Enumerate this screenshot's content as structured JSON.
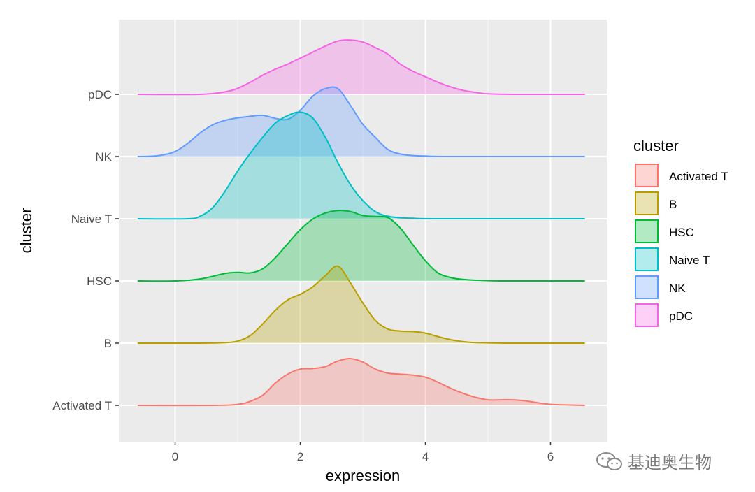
{
  "chart_data": {
    "type": "ridgeline",
    "xlabel": "expression",
    "ylabel": "cluster",
    "xlim": [
      -0.9,
      6.9
    ],
    "x_ticks": [
      0,
      2,
      4,
      6
    ],
    "x_minor_ticks": [
      1,
      3,
      5
    ],
    "grid": true,
    "legend": {
      "title": "cluster",
      "placement": "right"
    },
    "series": [
      {
        "name": "Activated T",
        "color": "#F8766D",
        "x": [
          -0.6,
          0.6,
          1.0,
          1.2,
          1.4,
          1.6,
          1.8,
          2.0,
          2.2,
          2.4,
          2.6,
          2.8,
          3.0,
          3.2,
          3.4,
          3.6,
          3.8,
          4.0,
          4.2,
          4.4,
          4.6,
          4.8,
          5.0,
          5.2,
          5.4,
          5.6,
          5.8,
          6.0,
          6.2,
          6.55
        ],
        "density": [
          0,
          0,
          0.02,
          0.08,
          0.2,
          0.44,
          0.62,
          0.72,
          0.73,
          0.77,
          0.88,
          0.93,
          0.86,
          0.72,
          0.64,
          0.62,
          0.6,
          0.56,
          0.46,
          0.34,
          0.24,
          0.16,
          0.11,
          0.11,
          0.11,
          0.09,
          0.05,
          0.02,
          0.01,
          0
        ]
      },
      {
        "name": "B",
        "color": "#B79F00",
        "x": [
          -0.6,
          0.4,
          0.8,
          1.0,
          1.2,
          1.4,
          1.6,
          1.8,
          2.0,
          2.2,
          2.4,
          2.6,
          2.8,
          3.0,
          3.2,
          3.4,
          3.6,
          3.8,
          4.0,
          4.2,
          4.4,
          4.6,
          4.8,
          5.0,
          5.4,
          6.55
        ],
        "density": [
          0,
          0,
          0.01,
          0.04,
          0.15,
          0.38,
          0.65,
          0.86,
          0.97,
          1.12,
          1.34,
          1.53,
          1.2,
          0.8,
          0.45,
          0.28,
          0.24,
          0.23,
          0.2,
          0.13,
          0.07,
          0.03,
          0.01,
          0.005,
          0,
          0
        ]
      },
      {
        "name": "HSC",
        "color": "#00BA38",
        "x": [
          -0.6,
          0.0,
          0.4,
          0.8,
          1.0,
          1.2,
          1.4,
          1.6,
          1.8,
          2.0,
          2.2,
          2.4,
          2.6,
          2.8,
          3.0,
          3.2,
          3.4,
          3.6,
          3.8,
          4.0,
          4.2,
          4.4,
          4.6,
          5.0,
          5.4,
          6.55
        ],
        "density": [
          0,
          0,
          0.04,
          0.15,
          0.17,
          0.16,
          0.24,
          0.46,
          0.74,
          1.02,
          1.23,
          1.35,
          1.4,
          1.38,
          1.3,
          1.28,
          1.26,
          1.05,
          0.72,
          0.4,
          0.16,
          0.07,
          0.03,
          0.005,
          0,
          0
        ]
      },
      {
        "name": "Naive T",
        "color": "#00BFC4",
        "x": [
          -0.6,
          0.2,
          0.4,
          0.6,
          0.8,
          1.0,
          1.2,
          1.4,
          1.6,
          1.8,
          2.0,
          2.2,
          2.4,
          2.6,
          2.8,
          3.0,
          3.2,
          3.4,
          3.6,
          3.8,
          4.2,
          6.55
        ],
        "density": [
          0,
          0,
          0.05,
          0.22,
          0.55,
          0.95,
          1.3,
          1.62,
          1.9,
          2.05,
          2.12,
          2.0,
          1.62,
          1.12,
          0.68,
          0.36,
          0.14,
          0.05,
          0.02,
          0.01,
          0,
          0
        ]
      },
      {
        "name": "NK",
        "color": "#619CFF",
        "x": [
          -0.6,
          -0.4,
          -0.2,
          0.0,
          0.2,
          0.4,
          0.6,
          0.8,
          1.0,
          1.2,
          1.4,
          1.6,
          1.8,
          2.0,
          2.2,
          2.4,
          2.6,
          2.8,
          3.0,
          3.2,
          3.4,
          3.6,
          3.8,
          4.0,
          4.4,
          6.55
        ],
        "density": [
          0,
          0.005,
          0.03,
          0.1,
          0.26,
          0.47,
          0.63,
          0.72,
          0.77,
          0.8,
          0.82,
          0.76,
          0.74,
          0.92,
          1.2,
          1.35,
          1.35,
          1.02,
          0.64,
          0.38,
          0.14,
          0.05,
          0.02,
          0.01,
          0,
          0
        ]
      },
      {
        "name": "pDC",
        "color": "#F564E3",
        "x": [
          -0.6,
          0.4,
          0.8,
          1.0,
          1.2,
          1.4,
          1.6,
          1.8,
          2.0,
          2.2,
          2.4,
          2.6,
          2.8,
          3.0,
          3.2,
          3.4,
          3.6,
          3.8,
          4.0,
          4.2,
          4.4,
          4.6,
          4.8,
          5.0,
          5.4,
          6.55
        ],
        "density": [
          0,
          0,
          0.05,
          0.12,
          0.24,
          0.38,
          0.5,
          0.6,
          0.72,
          0.84,
          0.96,
          1.06,
          1.08,
          1.04,
          0.93,
          0.8,
          0.6,
          0.46,
          0.35,
          0.24,
          0.15,
          0.08,
          0.04,
          0.01,
          0,
          0
        ]
      }
    ]
  },
  "watermark": {
    "text": "基迪奥生物"
  }
}
